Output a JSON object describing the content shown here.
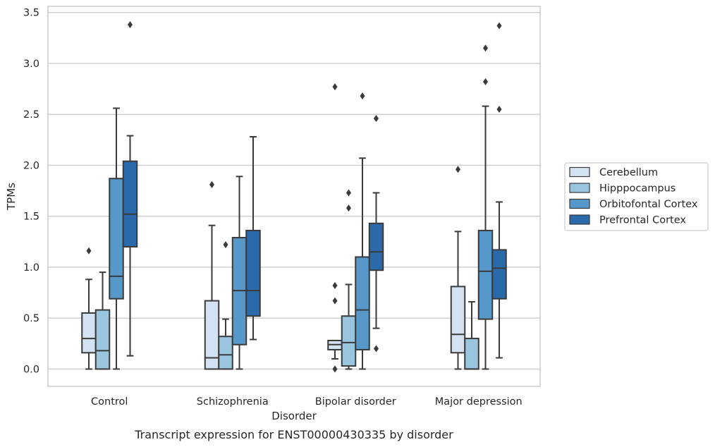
{
  "chart_data": {
    "type": "box",
    "xlabel": "Disorder",
    "ylabel": "TPMs",
    "caption": "Transcript expression for ENST00000430335 by disorder",
    "categories": [
      "Control",
      "Schizophrenia",
      "Bipolar disorder",
      "Major depression"
    ],
    "ylim": [
      -0.17,
      3.56
    ],
    "yticks": [
      0.0,
      0.5,
      1.0,
      1.5,
      2.0,
      2.5,
      3.0,
      3.5
    ],
    "ytick_labels": [
      "0.0",
      "0.5",
      "1.0",
      "1.5",
      "2.0",
      "2.5",
      "3.0",
      "3.5"
    ],
    "grid": "horizontal",
    "legend_position": "right",
    "series": [
      {
        "name": "Cerebellum",
        "color": "#d2e2f2",
        "boxes": [
          {
            "q1": 0.16,
            "median": 0.3,
            "q3": 0.55,
            "whisker_low": 0.0,
            "whisker_high": 0.88,
            "outliers": [
              1.16
            ]
          },
          {
            "q1": 0.0,
            "median": 0.11,
            "q3": 0.67,
            "whisker_low": 0.0,
            "whisker_high": 1.41,
            "outliers": [
              1.81
            ]
          },
          {
            "q1": 0.19,
            "median": 0.24,
            "q3": 0.28,
            "whisker_low": 0.1,
            "whisker_high": 0.28,
            "outliers": [
              0.0,
              0.67,
              0.82,
              2.77
            ]
          },
          {
            "q1": 0.16,
            "median": 0.34,
            "q3": 0.81,
            "whisker_low": 0.0,
            "whisker_high": 1.35,
            "outliers": [
              1.96
            ]
          }
        ]
      },
      {
        "name": "Hipppocampus",
        "color": "#9ac5df",
        "boxes": [
          {
            "q1": 0.0,
            "median": 0.18,
            "q3": 0.58,
            "whisker_low": 0.0,
            "whisker_high": 0.95,
            "outliers": []
          },
          {
            "q1": 0.0,
            "median": 0.14,
            "q3": 0.32,
            "whisker_low": 0.0,
            "whisker_high": 0.49,
            "outliers": [
              1.22
            ]
          },
          {
            "q1": 0.03,
            "median": 0.26,
            "q3": 0.52,
            "whisker_low": 0.0,
            "whisker_high": 0.83,
            "outliers": [
              1.58,
              1.73
            ]
          },
          {
            "q1": 0.0,
            "median": 0.0,
            "q3": 0.3,
            "whisker_low": 0.0,
            "whisker_high": 0.66,
            "outliers": []
          }
        ]
      },
      {
        "name": "Orbitofontal Cortex",
        "color": "#5598c9",
        "boxes": [
          {
            "q1": 0.69,
            "median": 0.91,
            "q3": 1.87,
            "whisker_low": 0.0,
            "whisker_high": 2.56,
            "outliers": []
          },
          {
            "q1": 0.24,
            "median": 0.77,
            "q3": 1.29,
            "whisker_low": 0.0,
            "whisker_high": 1.89,
            "outliers": []
          },
          {
            "q1": 0.19,
            "median": 0.58,
            "q3": 1.1,
            "whisker_low": 0.0,
            "whisker_high": 2.07,
            "outliers": [
              2.68
            ]
          },
          {
            "q1": 0.49,
            "median": 0.96,
            "q3": 1.36,
            "whisker_low": 0.0,
            "whisker_high": 2.58,
            "outliers": [
              2.82,
              3.15
            ]
          }
        ]
      },
      {
        "name": "Prefrontal Cortex",
        "color": "#2a6aaa",
        "boxes": [
          {
            "q1": 1.2,
            "median": 1.52,
            "q3": 2.04,
            "whisker_low": 0.13,
            "whisker_high": 2.29,
            "outliers": [
              3.38
            ]
          },
          {
            "q1": 0.52,
            "median": 0.77,
            "q3": 1.36,
            "whisker_low": 0.29,
            "whisker_high": 2.28,
            "outliers": []
          },
          {
            "q1": 0.97,
            "median": 1.15,
            "q3": 1.43,
            "whisker_low": 0.4,
            "whisker_high": 1.73,
            "outliers": [
              0.2,
              2.46
            ]
          },
          {
            "q1": 0.69,
            "median": 0.99,
            "q3": 1.17,
            "whisker_low": 0.11,
            "whisker_high": 1.64,
            "outliers": [
              2.55,
              3.37
            ]
          }
        ]
      }
    ]
  }
}
